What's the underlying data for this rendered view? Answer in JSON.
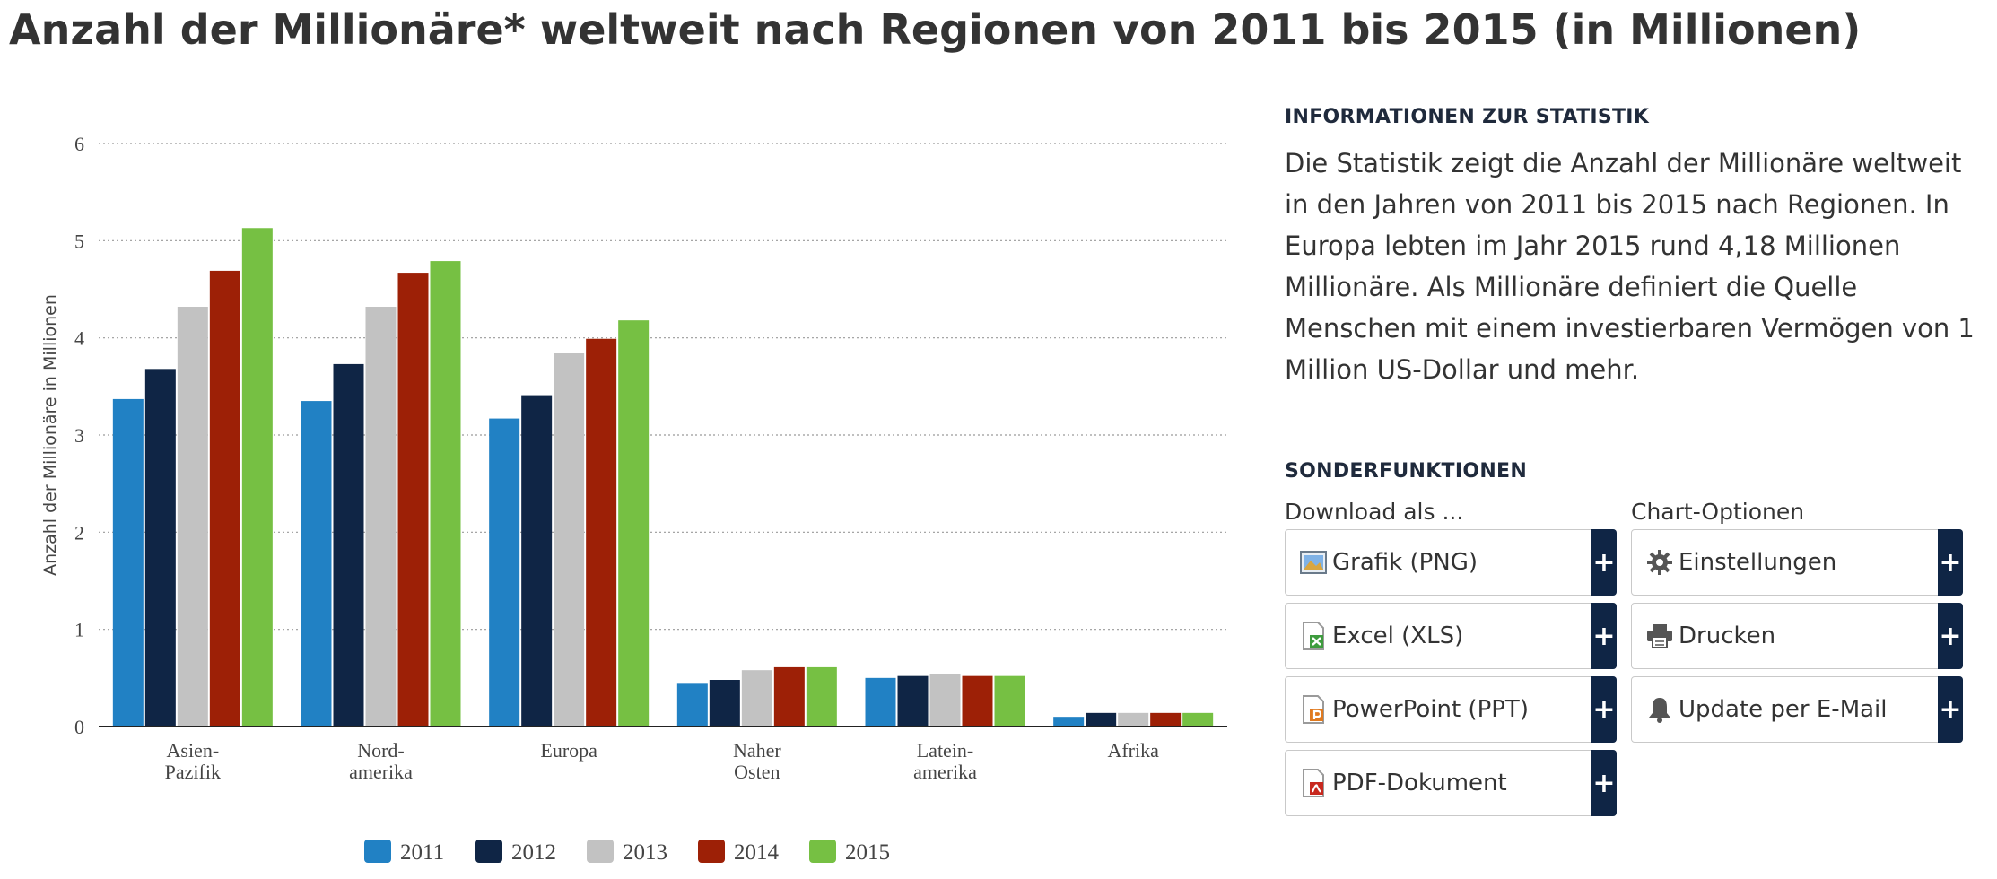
{
  "page": {
    "title": "Anzahl der Millionäre* weltweit nach Regionen von 2011 bis 2015 (in Millionen)"
  },
  "chart_data": {
    "type": "bar",
    "title": "Anzahl der Millionäre* weltweit nach Regionen von 2011 bis 2015 (in Millionen)",
    "ylabel": "Anzahl der Millionäre in Millionen",
    "xlabel": "",
    "ylim": [
      0,
      6
    ],
    "yticks": [
      "0",
      "1",
      "2",
      "3",
      "4",
      "5",
      "6"
    ],
    "grid": true,
    "legend_position": "bottom",
    "categories": [
      [
        "Asien-",
        "Pazifik"
      ],
      [
        "Nord-",
        "amerika"
      ],
      [
        "Europa"
      ],
      [
        "Naher",
        "Osten"
      ],
      [
        "Latein-",
        "amerika"
      ],
      [
        "Afrika"
      ]
    ],
    "series": [
      {
        "name": "2011",
        "color": "#2181c4",
        "values": [
          3.37,
          3.35,
          3.17,
          0.44,
          0.5,
          0.1
        ]
      },
      {
        "name": "2012",
        "color": "#0f2545",
        "values": [
          3.68,
          3.73,
          3.41,
          0.48,
          0.52,
          0.14
        ]
      },
      {
        "name": "2013",
        "color": "#c2c2c2",
        "values": [
          4.32,
          4.32,
          3.84,
          0.58,
          0.54,
          0.14
        ]
      },
      {
        "name": "2014",
        "color": "#9d2006",
        "values": [
          4.69,
          4.67,
          3.99,
          0.61,
          0.52,
          0.14
        ]
      },
      {
        "name": "2015",
        "color": "#76c043",
        "values": [
          5.13,
          4.79,
          4.18,
          0.61,
          0.52,
          0.14
        ]
      }
    ]
  },
  "info": {
    "heading": "INFORMATIONEN ZUR STATISTIK",
    "text": "Die Statistik zeigt die Anzahl der Millionäre weltweit in den Jahren von 2011 bis 2015 nach Regionen. In Europa lebten im Jahr 2015 rund 4,18 Millionen Millionäre. Als Millionäre definiert die Quelle Menschen mit einem investierbaren Vermögen von 1 Million US-Dollar und mehr."
  },
  "special": {
    "heading": "SONDERFUNKTIONEN",
    "download": {
      "label": "Download als ...",
      "items": [
        {
          "label": "Grafik (PNG)",
          "icon": "image-file-icon"
        },
        {
          "label": "Excel (XLS)",
          "icon": "excel-file-icon"
        },
        {
          "label": "PowerPoint (PPT)",
          "icon": "powerpoint-file-icon"
        },
        {
          "label": "PDF-Dokument",
          "icon": "pdf-file-icon"
        }
      ]
    },
    "options": {
      "label": "Chart-Optionen",
      "items": [
        {
          "label": "Einstellungen",
          "icon": "gear-icon"
        },
        {
          "label": "Drucken",
          "icon": "printer-icon"
        },
        {
          "label": "Update per E-Mail",
          "icon": "bell-icon"
        }
      ]
    },
    "plus_symbol": "+"
  }
}
